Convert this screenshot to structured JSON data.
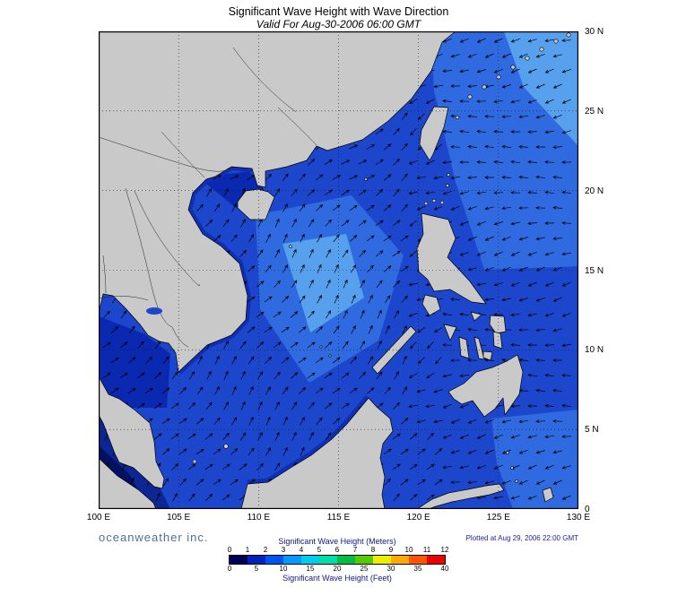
{
  "title": "Significant Wave Height with Wave Direction",
  "subtitle": "Valid For Aug-30-2006 06:00 GMT",
  "axes": {
    "lat": [
      {
        "label": "30 N",
        "value": 30
      },
      {
        "label": "25 N",
        "value": 25
      },
      {
        "label": "20 N",
        "value": 20
      },
      {
        "label": "15 N",
        "value": 15
      },
      {
        "label": "10 N",
        "value": 10
      },
      {
        "label": "5 N",
        "value": 5
      },
      {
        "label": "0",
        "value": 0
      }
    ],
    "lon": [
      {
        "label": "100 E",
        "value": 100
      },
      {
        "label": "105 E",
        "value": 105
      },
      {
        "label": "110 E",
        "value": 110
      },
      {
        "label": "115 E",
        "value": 115
      },
      {
        "label": "120 E",
        "value": 120
      },
      {
        "label": "125 E",
        "value": 125
      },
      {
        "label": "130 E",
        "value": 130
      }
    ]
  },
  "legend": {
    "title_meters": "Significant Wave Height (Meters)",
    "title_feet": "Significant Wave Height (Feet)",
    "meters_ticks": [
      "0",
      "1",
      "2",
      "3",
      "4",
      "5",
      "6",
      "7",
      "8",
      "9",
      "10",
      "11",
      "12"
    ],
    "feet_ticks": [
      "0",
      "5",
      "10",
      "15",
      "20",
      "25",
      "30",
      "35",
      "40"
    ],
    "colors": [
      "#000055",
      "#0022bb",
      "#0055ee",
      "#0099ff",
      "#00ccee",
      "#00ddaa",
      "#00bb44",
      "#55cc00",
      "#eeee00",
      "#ffaa00",
      "#ff5500",
      "#ee0000"
    ]
  },
  "credits": {
    "brand": "oceanweather inc.",
    "plotted": "Plotted at Aug 29, 2006 22:00 GMT"
  },
  "map_colors": {
    "ocean_base": "#1c46cc",
    "patch_light1": "#2f6ae0",
    "patch_light2": "#57a0ee",
    "coastal_dark": "#0a28b0",
    "corner_mid": "#0c2694",
    "corner_dark": "#041060",
    "land": "#c9c9c9"
  }
}
